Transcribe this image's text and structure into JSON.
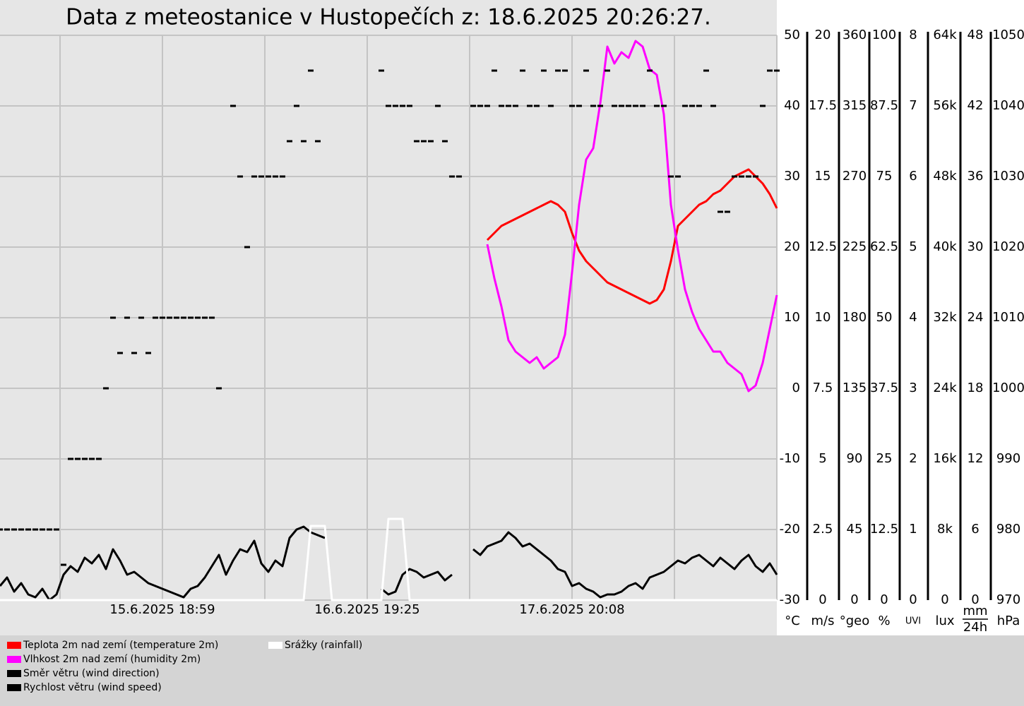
{
  "chart_data": {
    "type": "line",
    "title": "Data z meteostanice v Hustopečích z: 18.6.2025 20:26:27.",
    "categories": [
      null,
      null,
      null,
      null,
      null,
      null,
      null,
      null,
      null,
      null,
      null,
      null,
      null,
      null,
      null,
      null,
      null,
      null,
      null,
      null,
      null,
      null,
      null,
      "15.6.2025 18:59",
      null,
      null,
      null,
      null,
      null,
      null,
      null,
      null,
      null,
      null,
      null,
      null,
      null,
      null,
      null,
      null,
      null,
      null,
      null,
      null,
      null,
      null,
      null,
      null,
      null,
      null,
      null,
      null,
      "16.6.2025 19:25",
      null,
      null,
      null,
      null,
      null,
      null,
      null,
      null,
      null,
      null,
      null,
      null,
      null,
      null,
      null,
      null,
      null,
      null,
      null,
      null,
      null,
      null,
      null,
      null,
      null,
      null,
      null,
      null,
      "17.6.2025 20:08",
      null,
      null,
      null,
      null,
      null,
      null,
      null,
      null,
      null,
      null,
      null,
      null,
      null,
      null,
      null,
      null,
      null,
      null,
      null,
      null,
      null,
      null,
      null,
      null,
      null,
      null,
      null,
      null,
      null
    ],
    "axes": [
      {
        "unit": "°C",
        "lim": [
          -30,
          50
        ],
        "ticks": [
          -30,
          -20,
          -10,
          0,
          10,
          20,
          30,
          40,
          50
        ]
      },
      {
        "unit": "m/s",
        "lim": [
          0,
          20
        ],
        "ticks": [
          0,
          2.5,
          5,
          7.5,
          10,
          12.5,
          15,
          17.5,
          20
        ]
      },
      {
        "unit": "°geo",
        "lim": [
          0,
          360
        ],
        "ticks": [
          0,
          45,
          90,
          135,
          180,
          225,
          270,
          315,
          360
        ]
      },
      {
        "unit": "%",
        "lim": [
          0,
          100
        ],
        "ticks": [
          0,
          12.5,
          25,
          37.5,
          50,
          62.5,
          75,
          87.5,
          100
        ]
      },
      {
        "unit": "UVI",
        "lim": [
          0,
          8
        ],
        "ticks": [
          0,
          1,
          2,
          3,
          4,
          5,
          6,
          7,
          8
        ]
      },
      {
        "unit": "lux",
        "lim": [
          0,
          64000
        ],
        "ticks": [
          0,
          {
            "value": 8000,
            "label": "8k"
          },
          {
            "value": 16000,
            "label": "16k"
          },
          {
            "value": 24000,
            "label": "24k"
          },
          {
            "value": 32000,
            "label": "32k"
          },
          {
            "value": 40000,
            "label": "40k"
          },
          {
            "value": 48000,
            "label": "48k"
          },
          {
            "value": 56000,
            "label": "56k"
          },
          {
            "value": 64000,
            "label": "64k"
          }
        ]
      },
      {
        "unit": {
          "num": "mm",
          "den": "24h"
        },
        "lim": [
          0,
          48
        ],
        "ticks": [
          0,
          6,
          12,
          18,
          24,
          30,
          36,
          42,
          48
        ]
      },
      {
        "unit": "hPa",
        "lim": [
          970,
          1050
        ],
        "ticks": [
          970,
          980,
          990,
          1000,
          1010,
          1020,
          1030,
          1040,
          1050
        ]
      }
    ],
    "grid": true,
    "series": [
      {
        "name": "Teplota 2m nad zemí (temperature 2m)",
        "color": "#ff0000",
        "axis": 0,
        "style": "line",
        "values": [
          null,
          null,
          null,
          null,
          null,
          null,
          null,
          null,
          null,
          null,
          null,
          null,
          null,
          null,
          null,
          null,
          null,
          null,
          null,
          null,
          null,
          null,
          null,
          null,
          null,
          null,
          null,
          null,
          null,
          null,
          null,
          null,
          null,
          null,
          null,
          null,
          null,
          null,
          null,
          null,
          null,
          null,
          null,
          null,
          null,
          null,
          null,
          null,
          null,
          null,
          null,
          null,
          null,
          null,
          null,
          null,
          null,
          null,
          null,
          null,
          null,
          null,
          null,
          null,
          null,
          null,
          null,
          null,
          null,
          21,
          22,
          23,
          23.5,
          24,
          24.5,
          25,
          25.5,
          26,
          26.5,
          26,
          25,
          22,
          19.5,
          18,
          17,
          16,
          15,
          14.5,
          14,
          13.5,
          13,
          12.5,
          12,
          12.5,
          14,
          18,
          23,
          24,
          25,
          26,
          26.5,
          27.5,
          28,
          29,
          30,
          30.5,
          31,
          30,
          29,
          27.5,
          25.5
        ]
      },
      {
        "name": "Vlhkost 2m nad zemí (humidity 2m)",
        "color": "#ff00ff",
        "axis": 3,
        "style": "line",
        "values": [
          null,
          null,
          null,
          null,
          null,
          null,
          null,
          null,
          null,
          null,
          null,
          null,
          null,
          null,
          null,
          null,
          null,
          null,
          null,
          null,
          null,
          null,
          null,
          null,
          null,
          null,
          null,
          null,
          null,
          null,
          null,
          null,
          null,
          null,
          null,
          null,
          null,
          null,
          null,
          null,
          null,
          null,
          null,
          null,
          null,
          null,
          null,
          null,
          null,
          null,
          null,
          null,
          null,
          null,
          null,
          null,
          null,
          null,
          null,
          null,
          null,
          null,
          null,
          null,
          null,
          null,
          null,
          null,
          null,
          63,
          57,
          52,
          46,
          44,
          43,
          42,
          43,
          41,
          42,
          43,
          47,
          58,
          70,
          78,
          80,
          88,
          98,
          95,
          97,
          96,
          99,
          98,
          94,
          93,
          86,
          70,
          62,
          55,
          51,
          48,
          46,
          44,
          44,
          42,
          41,
          40,
          37,
          38,
          42,
          48,
          54
        ]
      },
      {
        "name": "Směr větru (wind direction)",
        "color": "#000000",
        "axis": 2,
        "style": "dots",
        "values": [
          45,
          45,
          45,
          45,
          45,
          45,
          45,
          45,
          45,
          22.5,
          90,
          90,
          90,
          90,
          90,
          135,
          180,
          157.5,
          180,
          157.5,
          180,
          157.5,
          180,
          180,
          180,
          180,
          180,
          180,
          180,
          180,
          180,
          135,
          null,
          315,
          270,
          225,
          270,
          270,
          270,
          270,
          270,
          292.5,
          315,
          292.5,
          337.5,
          292.5,
          null,
          null,
          null,
          null,
          null,
          null,
          null,
          null,
          337.5,
          315,
          315,
          315,
          315,
          292.5,
          292.5,
          292.5,
          315,
          292.5,
          270,
          270,
          null,
          315,
          315,
          315,
          337.5,
          315,
          315,
          315,
          337.5,
          315,
          315,
          337.5,
          315,
          337.5,
          337.5,
          315,
          315,
          337.5,
          315,
          315,
          337.5,
          315,
          315,
          315,
          315,
          315,
          337.5,
          315,
          315,
          270,
          270,
          315,
          315,
          315,
          337.5,
          315,
          247.5,
          247.5,
          270,
          270,
          270,
          270,
          315,
          337.5,
          337.5
        ]
      },
      {
        "name": "Rychlost větru (wind speed)",
        "color": "#000000",
        "axis": 1,
        "style": "line",
        "values": [
          0.5,
          0.8,
          0.3,
          0.6,
          0.2,
          0.1,
          0.4,
          0,
          0.2,
          0.9,
          1.2,
          1.0,
          1.5,
          1.3,
          1.6,
          1.1,
          1.8,
          1.4,
          0.9,
          1.0,
          0.8,
          0.6,
          0.5,
          0.4,
          0.3,
          0.2,
          0.1,
          0.4,
          0.5,
          0.8,
          1.2,
          1.6,
          0.9,
          1.4,
          1.8,
          1.7,
          2.1,
          1.3,
          1.0,
          1.4,
          1.2,
          2.2,
          2.5,
          2.6,
          2.4,
          2.3,
          2.2,
          null,
          null,
          null,
          null,
          null,
          null,
          null,
          0.4,
          0.2,
          0.3,
          0.9,
          1.1,
          1.0,
          0.8,
          0.9,
          1.0,
          0.7,
          0.9,
          null,
          null,
          1.8,
          1.6,
          1.9,
          2.0,
          2.1,
          2.4,
          2.2,
          1.9,
          2.0,
          1.8,
          1.6,
          1.4,
          1.1,
          1.0,
          0.5,
          0.6,
          0.4,
          0.3,
          0.1,
          0.2,
          0.2,
          0.3,
          0.5,
          0.6,
          0.4,
          0.8,
          0.9,
          1.0,
          1.2,
          1.4,
          1.3,
          1.5,
          1.6,
          1.4,
          1.2,
          1.5,
          1.3,
          1.1,
          1.4,
          1.6,
          1.2,
          1.0,
          1.3,
          0.9
        ]
      },
      {
        "name": "Srážky (rainfall)",
        "color": "#ffffff",
        "axis": 6,
        "style": "line",
        "values": [
          0,
          0,
          0,
          0,
          0,
          0,
          0,
          0,
          0,
          0,
          0,
          0,
          0,
          0,
          0,
          0,
          0,
          0,
          0,
          0,
          0,
          0,
          0,
          0,
          0,
          0,
          0,
          0,
          0,
          0,
          0,
          0,
          0,
          0,
          0,
          0,
          0,
          0,
          0,
          0,
          0,
          0,
          0,
          0,
          6.3,
          6.3,
          6.3,
          0,
          0,
          0,
          0,
          0,
          0,
          0,
          0,
          6.9,
          6.9,
          6.9,
          0,
          0,
          0,
          0,
          0,
          0,
          0,
          0,
          0,
          0,
          0,
          0,
          0,
          0,
          0,
          0,
          0,
          0,
          0,
          0,
          0,
          0,
          0,
          0,
          0,
          0,
          0,
          0,
          0,
          0,
          0,
          0,
          0,
          0,
          0,
          0,
          0,
          0,
          0,
          0,
          0,
          0,
          0,
          0,
          0,
          0,
          0,
          0,
          0,
          0,
          0,
          0,
          0
        ]
      }
    ]
  }
}
